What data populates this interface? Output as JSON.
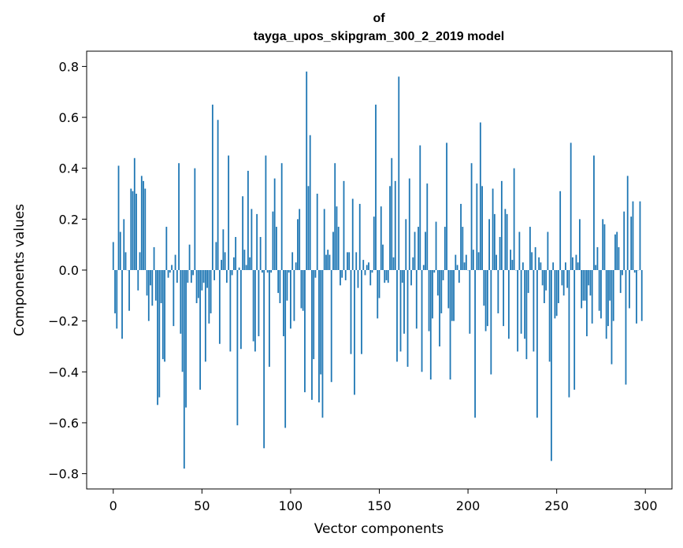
{
  "chart_data": {
    "type": "bar",
    "title_line1": "of",
    "title_line2": "tayga_upos_skipgram_300_2_2019 model",
    "xlabel": "Vector components",
    "ylabel": "Components values",
    "xlim": [
      -15,
      315
    ],
    "ylim": [
      -0.86,
      0.86
    ],
    "xticks": [
      0,
      50,
      100,
      150,
      200,
      250,
      300
    ],
    "yticks": [
      -0.8,
      -0.6,
      -0.4,
      -0.2,
      0.0,
      0.2,
      0.4,
      0.6,
      0.8
    ],
    "ytick_labels": [
      "−0.8",
      "−0.6",
      "−0.4",
      "−0.2",
      "0.0",
      "0.2",
      "0.4",
      "0.6",
      "0.8"
    ],
    "color": "#1f77b4",
    "values": [
      0.11,
      -0.17,
      -0.23,
      0.41,
      0.15,
      -0.27,
      0.2,
      0.07,
      0.0,
      -0.16,
      0.32,
      0.31,
      0.44,
      0.3,
      -0.08,
      0.07,
      0.37,
      0.35,
      0.32,
      -0.1,
      -0.2,
      -0.06,
      -0.14,
      0.09,
      -0.12,
      -0.53,
      -0.5,
      -0.13,
      -0.35,
      -0.36,
      0.17,
      -0.03,
      -0.01,
      0.02,
      -0.22,
      0.06,
      -0.05,
      0.42,
      -0.25,
      -0.4,
      -0.78,
      -0.54,
      -0.05,
      0.1,
      -0.05,
      -0.02,
      0.4,
      -0.13,
      -0.11,
      -0.47,
      -0.08,
      -0.05,
      -0.36,
      -0.07,
      -0.21,
      -0.17,
      0.65,
      -0.04,
      0.11,
      0.59,
      -0.29,
      0.04,
      0.16,
      0.07,
      -0.05,
      0.45,
      -0.32,
      -0.02,
      0.05,
      0.13,
      -0.61,
      0.01,
      -0.31,
      0.29,
      0.08,
      0.02,
      0.39,
      0.05,
      0.24,
      -0.28,
      -0.32,
      0.22,
      -0.26,
      0.13,
      -0.01,
      -0.7,
      0.45,
      -0.01,
      -0.38,
      -0.01,
      0.23,
      0.36,
      0.17,
      -0.09,
      -0.13,
      0.42,
      -0.26,
      -0.62,
      -0.12,
      -0.01,
      -0.23,
      0.07,
      -0.2,
      0.03,
      0.2,
      0.24,
      -0.15,
      -0.16,
      -0.48,
      0.78,
      0.33,
      0.53,
      -0.51,
      -0.35,
      -0.03,
      0.3,
      -0.52,
      -0.41,
      -0.58,
      0.24,
      0.06,
      0.08,
      0.06,
      -0.44,
      0.15,
      0.42,
      0.25,
      0.17,
      -0.06,
      -0.03,
      0.35,
      -0.04,
      0.07,
      0.07,
      -0.33,
      0.28,
      -0.49,
      0.07,
      -0.07,
      0.26,
      -0.33,
      0.04,
      -0.02,
      0.02,
      0.03,
      -0.06,
      -0.01,
      0.21,
      0.65,
      -0.19,
      -0.11,
      0.25,
      0.1,
      -0.05,
      -0.04,
      -0.05,
      0.33,
      0.44,
      0.05,
      0.35,
      -0.36,
      0.76,
      -0.32,
      -0.05,
      -0.25,
      0.2,
      -0.38,
      0.36,
      -0.06,
      0.05,
      0.15,
      -0.23,
      0.17,
      0.49,
      -0.4,
      0.02,
      0.15,
      0.34,
      -0.24,
      -0.43,
      -0.19,
      -0.01,
      0.19,
      -0.1,
      -0.3,
      -0.17,
      -0.04,
      0.17,
      0.5,
      -0.15,
      -0.43,
      -0.2,
      -0.2,
      0.06,
      0.02,
      -0.05,
      0.26,
      0.17,
      0.03,
      0.06,
      0.0,
      -0.25,
      0.42,
      0.08,
      -0.58,
      0.34,
      0.07,
      0.58,
      0.33,
      -0.14,
      -0.24,
      -0.22,
      0.2,
      -0.41,
      0.32,
      0.22,
      0.06,
      -0.17,
      0.13,
      0.35,
      -0.22,
      0.24,
      0.22,
      -0.27,
      0.08,
      0.04,
      0.4,
      0.0,
      -0.32,
      0.15,
      -0.25,
      0.03,
      -0.27,
      -0.35,
      -0.09,
      0.17,
      0.07,
      -0.32,
      0.09,
      -0.58,
      0.05,
      0.03,
      -0.06,
      -0.13,
      -0.08,
      0.15,
      -0.36,
      -0.75,
      0.03,
      -0.19,
      -0.18,
      -0.13,
      0.31,
      -0.06,
      -0.1,
      0.03,
      -0.07,
      -0.5,
      0.5,
      0.05,
      -0.47,
      0.06,
      0.03,
      0.2,
      -0.15,
      -0.12,
      -0.12,
      -0.26,
      -0.06,
      -0.1,
      -0.21,
      0.45,
      0.02,
      0.09,
      -0.16,
      -0.19,
      0.2,
      0.18,
      -0.27,
      -0.22,
      -0.12,
      -0.37,
      -0.2,
      0.14,
      0.15,
      0.09,
      -0.09,
      -0.02,
      0.23,
      -0.45,
      0.37,
      -0.15,
      0.21,
      0.27,
      -0.01,
      -0.21,
      0.0,
      0.27,
      -0.2
    ]
  }
}
